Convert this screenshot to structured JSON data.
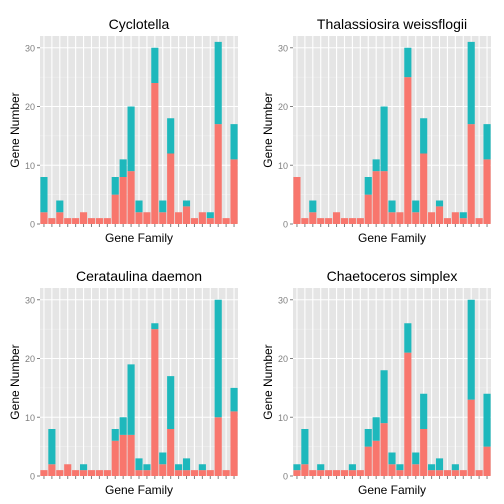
{
  "colors": {
    "series_1": "#F8766D",
    "series_2": "#1EB8BC",
    "panel_bg": "#E5E5E5",
    "grid_major": "#FFFFFF",
    "grid_minor": "#F2F2F2",
    "tick_label": "#7F7F7F"
  },
  "chart_data": [
    {
      "type": "bar",
      "stacked": true,
      "title": "Cyclotella",
      "xlabel": "Gene Family",
      "ylabel": "Gene Number",
      "ylim": [
        0,
        32
      ],
      "yticks": [
        0,
        10,
        20,
        30
      ],
      "grid": true,
      "series": [
        {
          "values": [
            2,
            1,
            2,
            1,
            1,
            2,
            1,
            1,
            1,
            5,
            8,
            9,
            2,
            2,
            24,
            2,
            12,
            2,
            3,
            1,
            2,
            1,
            17,
            1,
            11
          ]
        },
        {
          "values": [
            6,
            0,
            2,
            0,
            0,
            0,
            0,
            0,
            0,
            3,
            3,
            11,
            2,
            0,
            6,
            2,
            6,
            0,
            1,
            0,
            0,
            1,
            14,
            0,
            6
          ]
        }
      ]
    },
    {
      "type": "bar",
      "stacked": true,
      "title": "Thalassiosira weissflogii",
      "xlabel": "Gene Family",
      "ylabel": "Gene Number",
      "ylim": [
        0,
        32
      ],
      "yticks": [
        0,
        10,
        20,
        30
      ],
      "grid": true,
      "series": [
        {
          "values": [
            8,
            1,
            2,
            1,
            1,
            2,
            1,
            1,
            1,
            5,
            9,
            9,
            2,
            2,
            25,
            2,
            12,
            2,
            3,
            1,
            2,
            1,
            17,
            1,
            11
          ]
        },
        {
          "values": [
            0,
            0,
            2,
            0,
            0,
            0,
            0,
            0,
            0,
            3,
            2,
            11,
            2,
            0,
            5,
            2,
            6,
            0,
            1,
            0,
            0,
            1,
            14,
            0,
            6
          ]
        }
      ]
    },
    {
      "type": "bar",
      "stacked": true,
      "title": "Cerataulina daemon",
      "xlabel": "Gene Family",
      "ylabel": "Gene Number",
      "ylim": [
        0,
        32
      ],
      "yticks": [
        0,
        10,
        20,
        30
      ],
      "grid": true,
      "series": [
        {
          "values": [
            1,
            2,
            1,
            2,
            1,
            1,
            1,
            1,
            1,
            6,
            7,
            7,
            1,
            1,
            25,
            2,
            8,
            1,
            1,
            1,
            1,
            1,
            10,
            1,
            11
          ]
        },
        {
          "values": [
            0,
            6,
            0,
            0,
            0,
            1,
            0,
            0,
            0,
            2,
            3,
            12,
            2,
            1,
            1,
            2,
            9,
            1,
            2,
            0,
            1,
            0,
            20,
            0,
            4
          ]
        }
      ]
    },
    {
      "type": "bar",
      "stacked": true,
      "title": "Chaetoceros simplex",
      "xlabel": "Gene Family",
      "ylabel": "Gene Number",
      "ylim": [
        0,
        32
      ],
      "yticks": [
        0,
        10,
        20,
        30
      ],
      "grid": true,
      "series": [
        {
          "values": [
            1,
            2,
            1,
            1,
            1,
            1,
            1,
            1,
            1,
            5,
            6,
            9,
            2,
            1,
            21,
            2,
            8,
            1,
            1,
            1,
            1,
            1,
            13,
            1,
            5
          ]
        },
        {
          "values": [
            1,
            6,
            0,
            1,
            0,
            0,
            0,
            1,
            0,
            3,
            4,
            9,
            2,
            1,
            5,
            2,
            6,
            1,
            2,
            0,
            1,
            0,
            17,
            0,
            9
          ]
        }
      ]
    }
  ]
}
